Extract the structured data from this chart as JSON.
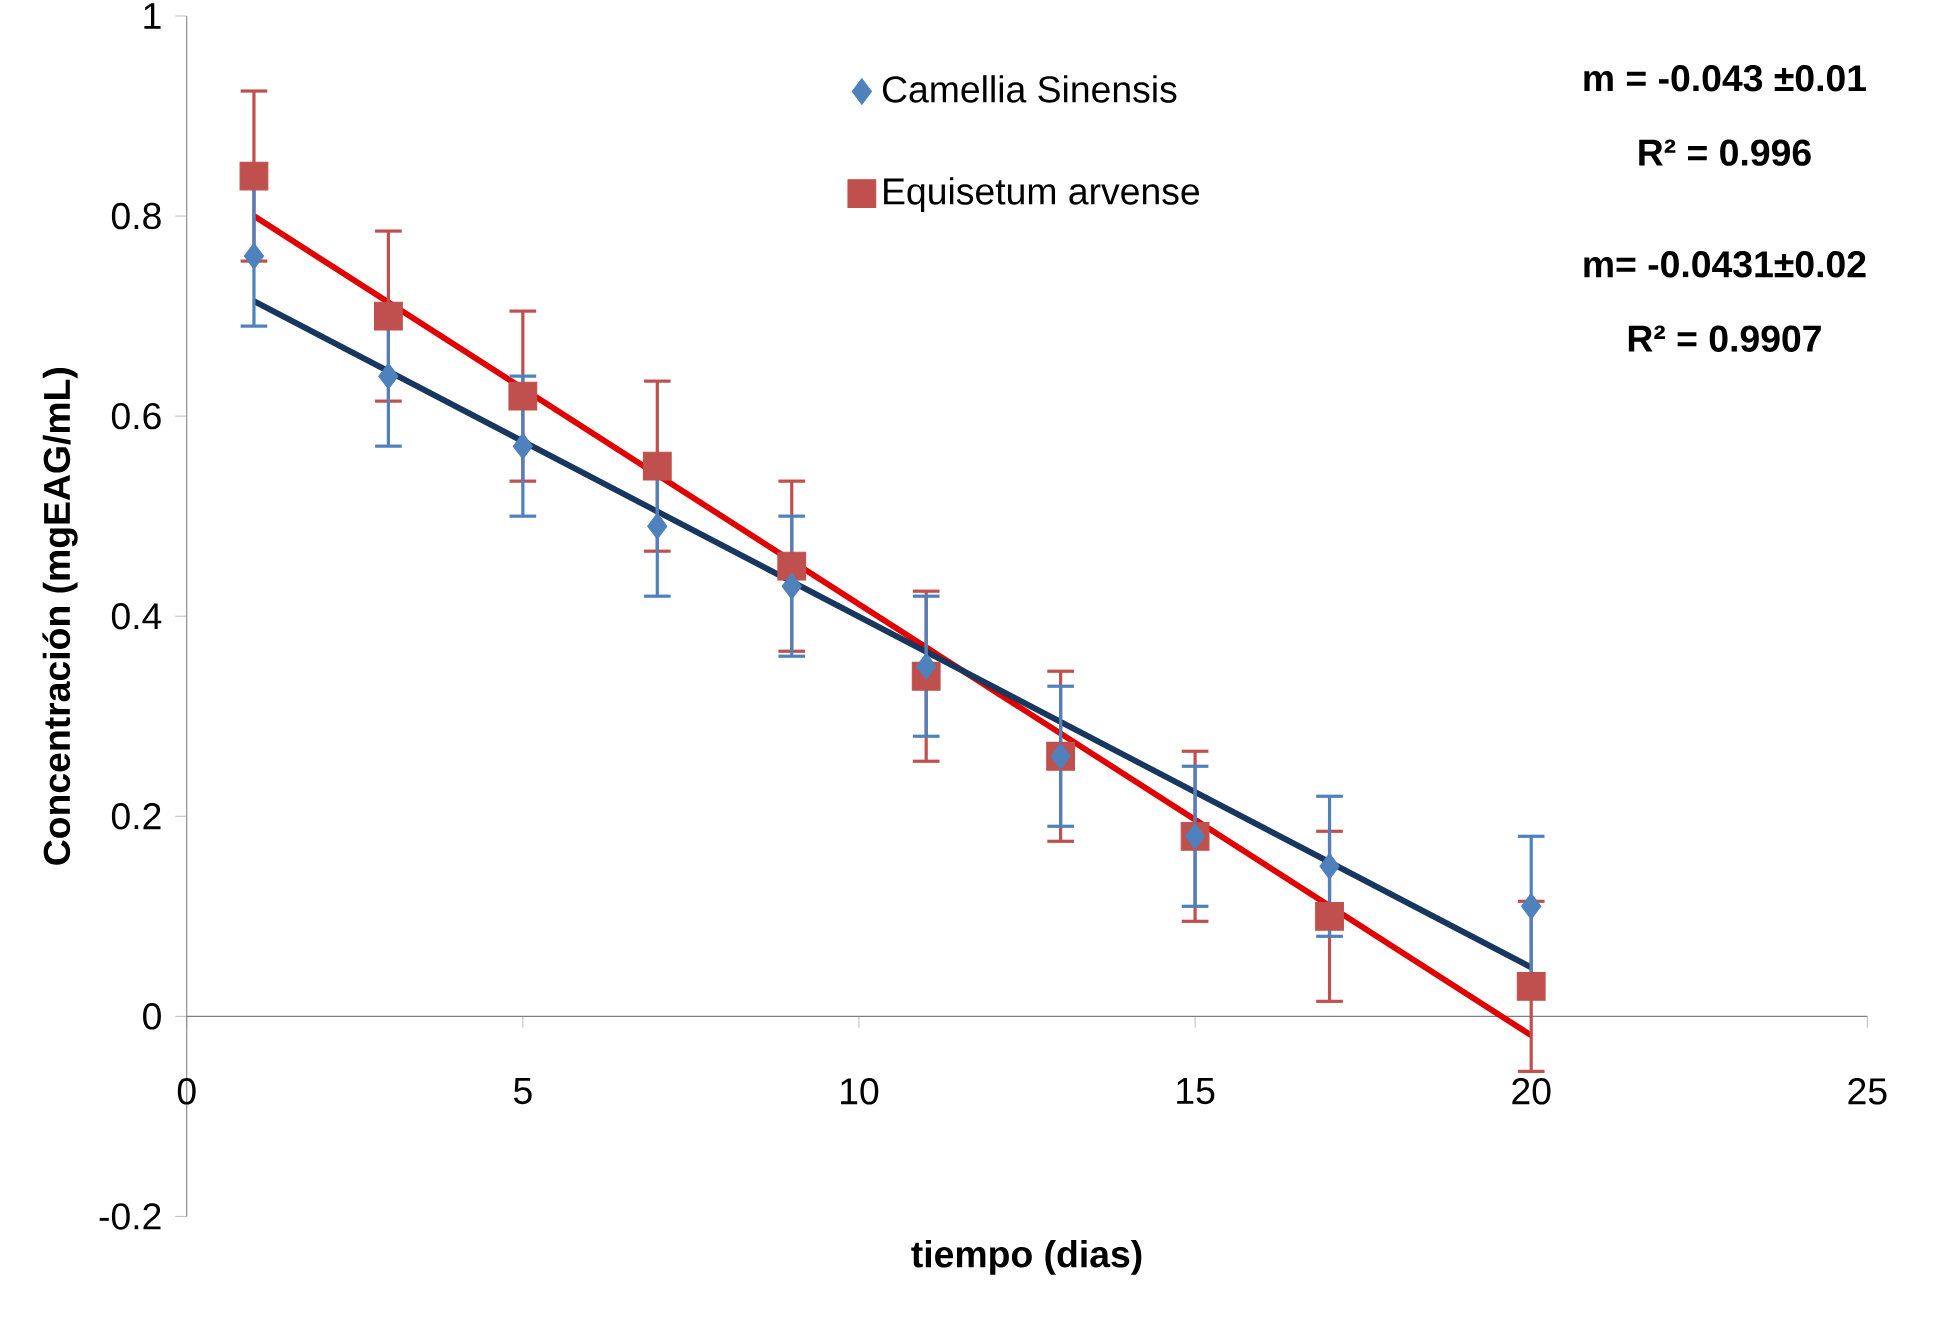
{
  "chart_data": {
    "type": "scatter",
    "xlabel": "tiempo (dias)",
    "ylabel": "Concentración (mgEAG/mL)",
    "xlim": [
      0,
      25
    ],
    "ylim": [
      -0.2,
      1
    ],
    "xticks": [
      0,
      5,
      10,
      15,
      20,
      25
    ],
    "yticks": [
      -0.2,
      0,
      0.2,
      0.4,
      0.6,
      0.8,
      1
    ],
    "legend": "top",
    "annotations": [
      "m = -0.043 ±0.01",
      "R² = 0.996",
      "m= -0.0431±0.02",
      "R² = 0.9907"
    ],
    "series": [
      {
        "name": "Camellia Sinensis",
        "marker": "diamond",
        "color": "#4f81bd",
        "x": [
          1,
          3,
          5,
          7,
          9,
          11,
          13,
          15,
          17,
          20
        ],
        "values": [
          0.76,
          0.64,
          0.57,
          0.49,
          0.43,
          0.35,
          0.26,
          0.18,
          0.15,
          0.11
        ],
        "errors": [
          0.07,
          0.07,
          0.07,
          0.07,
          0.07,
          0.07,
          0.07,
          0.07,
          0.07,
          0.07
        ]
      },
      {
        "name": "Equisetum arvense",
        "marker": "square",
        "color": "#c0504d",
        "x": [
          1,
          3,
          5,
          7,
          9,
          11,
          13,
          15,
          17,
          20
        ],
        "values": [
          0.84,
          0.7,
          0.62,
          0.55,
          0.45,
          0.34,
          0.26,
          0.18,
          0.1,
          0.03
        ],
        "errors": [
          0.085,
          0.085,
          0.085,
          0.085,
          0.085,
          0.085,
          0.085,
          0.085,
          0.085,
          0.085
        ]
      },
      {
        "type": "line",
        "marker": "none",
        "color": "#17375e",
        "x": [
          1,
          20
        ],
        "values": [
          0.715,
          0.049
        ]
      },
      {
        "type": "line",
        "marker": "none",
        "color": "#e00000",
        "x": [
          1,
          20
        ],
        "values": [
          0.8,
          -0.019
        ]
      }
    ]
  }
}
